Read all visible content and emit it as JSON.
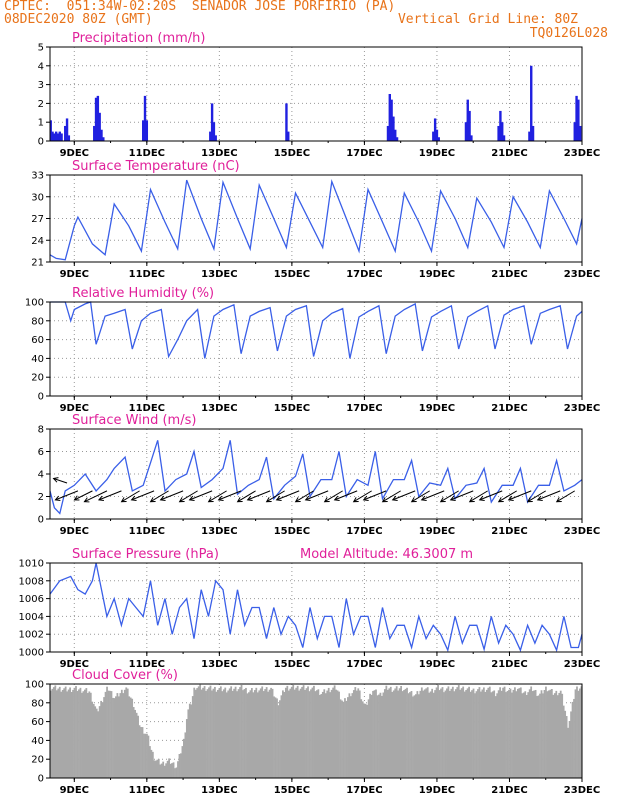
{
  "header": {
    "line1": "CPTEC:  051:34W-02:20S  SENADOR JOSE PORFIRIO (PA)",
    "date": "08DEC2020 80Z (GMT)",
    "grid_note": "Vertical Grid Line: 80Z",
    "code": "TQ0126L028"
  },
  "x_axis": {
    "ticks": [
      "9DEC",
      "11DEC",
      "13DEC",
      "15DEC",
      "17DEC",
      "19DEC",
      "21DEC",
      "23DEC"
    ],
    "tick_days": [
      9,
      11,
      13,
      15,
      17,
      19,
      21,
      23
    ],
    "start_day": 8.33,
    "end_day": 23.0
  },
  "chart_data": [
    {
      "type": "bar",
      "title": "Precipitation (mm/h)",
      "ylim": [
        0,
        5
      ],
      "yticks": [
        0,
        1,
        2,
        3,
        4,
        5
      ],
      "color": "#2020e0",
      "x": [
        8.35,
        8.4,
        8.45,
        8.5,
        8.55,
        8.6,
        8.65,
        8.75,
        8.8,
        8.85,
        9.55,
        9.6,
        9.65,
        9.7,
        9.75,
        9.8,
        10.9,
        10.95,
        11.0,
        12.75,
        12.8,
        12.85,
        12.9,
        14.85,
        14.9,
        17.65,
        17.7,
        17.75,
        17.8,
        17.85,
        17.9,
        18.9,
        18.95,
        19.0,
        19.05,
        19.8,
        19.85,
        19.9,
        19.95,
        20.7,
        20.75,
        20.8,
        20.85,
        21.55,
        21.6,
        21.65,
        22.8,
        22.85,
        22.9,
        22.95
      ],
      "values": [
        1.1,
        0.5,
        0.4,
        0.5,
        0.4,
        0.5,
        0.4,
        0.8,
        1.2,
        0.3,
        0.8,
        2.3,
        2.4,
        1.5,
        0.6,
        0.2,
        1.1,
        2.4,
        1.1,
        0.5,
        2.0,
        1.0,
        0.3,
        2.0,
        0.5,
        0.8,
        2.5,
        2.2,
        1.3,
        0.6,
        0.2,
        0.5,
        1.2,
        0.6,
        0.2,
        1.0,
        2.2,
        1.6,
        0.3,
        0.8,
        1.6,
        1.0,
        0.3,
        0.5,
        4.0,
        0.8,
        1.0,
        2.4,
        2.2,
        0.8
      ],
      "grid": true
    },
    {
      "type": "line",
      "title": "Surface Temperature (nC)",
      "ylim": [
        21,
        33
      ],
      "yticks": [
        21,
        24,
        27,
        30,
        33
      ],
      "color": "#3a5fe8",
      "x": [
        8.33,
        8.5,
        8.75,
        9.0,
        9.1,
        9.5,
        9.85,
        10.1,
        10.5,
        10.85,
        11.1,
        11.5,
        11.85,
        12.1,
        12.5,
        12.85,
        13.1,
        13.5,
        13.85,
        14.1,
        14.5,
        14.85,
        15.1,
        15.5,
        15.85,
        16.1,
        16.5,
        16.85,
        17.1,
        17.5,
        17.85,
        18.1,
        18.5,
        18.85,
        19.1,
        19.5,
        19.85,
        20.1,
        20.5,
        20.85,
        21.1,
        21.5,
        21.85,
        22.1,
        22.5,
        22.85,
        23.0
      ],
      "values": [
        22.0,
        21.5,
        21.3,
        26.0,
        27.2,
        23.5,
        22.0,
        29.0,
        26.0,
        22.5,
        31.0,
        26.5,
        22.8,
        32.3,
        27.0,
        22.8,
        32.0,
        27.0,
        22.8,
        31.6,
        27.0,
        23.0,
        30.5,
        26.5,
        23.0,
        32.1,
        27.0,
        22.5,
        31.0,
        26.5,
        22.5,
        30.5,
        26.5,
        22.5,
        30.8,
        27.0,
        23.0,
        29.8,
        26.5,
        23.0,
        30.0,
        26.5,
        23.0,
        30.8,
        27.0,
        23.5,
        27.0
      ],
      "grid": true
    },
    {
      "type": "line",
      "title": "Relative Humidity (%)",
      "ylim": [
        0,
        100
      ],
      "yticks": [
        0,
        20,
        40,
        60,
        80,
        100
      ],
      "color": "#3a5fe8",
      "x": [
        8.33,
        8.6,
        8.75,
        8.9,
        9.0,
        9.3,
        9.45,
        9.6,
        9.85,
        10.1,
        10.4,
        10.6,
        10.85,
        11.1,
        11.4,
        11.6,
        11.85,
        12.1,
        12.4,
        12.6,
        12.85,
        13.1,
        13.4,
        13.6,
        13.85,
        14.1,
        14.4,
        14.6,
        14.85,
        15.1,
        15.4,
        15.6,
        15.85,
        16.1,
        16.4,
        16.6,
        16.85,
        17.1,
        17.4,
        17.6,
        17.85,
        18.1,
        18.4,
        18.6,
        18.85,
        19.1,
        19.4,
        19.6,
        19.85,
        20.1,
        20.4,
        20.6,
        20.85,
        21.1,
        21.4,
        21.6,
        21.85,
        22.1,
        22.4,
        22.6,
        22.85,
        23.0
      ],
      "values": [
        100,
        100,
        100,
        80,
        92,
        98,
        100,
        55,
        85,
        88,
        92,
        50,
        80,
        88,
        92,
        42,
        60,
        80,
        92,
        40,
        85,
        92,
        97,
        45,
        85,
        90,
        94,
        48,
        85,
        92,
        96,
        42,
        80,
        88,
        93,
        40,
        84,
        90,
        96,
        45,
        85,
        92,
        98,
        48,
        84,
        90,
        96,
        50,
        84,
        90,
        96,
        50,
        86,
        92,
        96,
        55,
        88,
        92,
        96,
        50,
        85,
        90
      ],
      "grid": true
    },
    {
      "type": "line",
      "title": "Surface Wind (m/s)",
      "ylim": [
        0,
        8
      ],
      "yticks": [
        0,
        2,
        4,
        6,
        8
      ],
      "color": "#3a5fe8",
      "x": [
        8.33,
        8.45,
        8.6,
        8.75,
        9.0,
        9.3,
        9.6,
        9.9,
        10.1,
        10.4,
        10.6,
        10.9,
        11.1,
        11.3,
        11.5,
        11.8,
        12.1,
        12.3,
        12.5,
        12.8,
        13.1,
        13.3,
        13.5,
        13.8,
        14.1,
        14.3,
        14.5,
        14.8,
        15.1,
        15.3,
        15.5,
        15.8,
        16.1,
        16.3,
        16.5,
        16.8,
        17.1,
        17.3,
        17.5,
        17.8,
        18.1,
        18.3,
        18.5,
        18.8,
        19.1,
        19.3,
        19.5,
        19.8,
        20.1,
        20.3,
        20.5,
        20.8,
        21.1,
        21.3,
        21.5,
        21.8,
        22.1,
        22.3,
        22.5,
        22.8,
        23.0
      ],
      "values": [
        2.5,
        1.0,
        0.5,
        2.5,
        3.0,
        4.0,
        2.5,
        3.5,
        4.5,
        5.5,
        2.5,
        3.0,
        5.0,
        7.0,
        2.5,
        3.5,
        4.0,
        6.0,
        2.8,
        3.5,
        4.5,
        7.0,
        2.2,
        3.0,
        3.5,
        5.5,
        1.8,
        3.0,
        3.8,
        5.8,
        2.0,
        3.5,
        3.5,
        6.0,
        2.0,
        3.5,
        3.0,
        6.0,
        1.8,
        3.5,
        3.5,
        5.2,
        2.0,
        3.2,
        3.0,
        4.5,
        1.8,
        3.0,
        3.2,
        4.5,
        1.5,
        3.0,
        3.0,
        4.5,
        1.5,
        3.0,
        3.0,
        5.2,
        2.5,
        3.0,
        3.5
      ],
      "arrows": {
        "x": [
          8.8,
          9.1,
          9.5,
          9.9,
          10.3,
          10.8,
          11.2,
          11.6,
          12.0,
          12.4,
          12.8,
          13.2,
          13.6,
          14.0,
          14.4,
          14.8,
          15.2,
          15.6,
          16.0,
          16.4,
          16.8,
          17.2,
          17.6,
          18.0,
          18.4,
          18.8,
          19.2,
          19.6,
          20.0,
          20.4,
          20.8,
          21.2,
          21.6,
          22.0,
          22.4,
          22.8
        ],
        "y": [
          3.2,
          2.5,
          2.5,
          2.5,
          2.5,
          2.5,
          2.5,
          2.5,
          2.5,
          2.5,
          2.5,
          2.5,
          2.5,
          2.5,
          2.5,
          2.5,
          2.5,
          2.5,
          2.5,
          2.5,
          2.5,
          2.5,
          2.5,
          2.5,
          2.5,
          2.5,
          2.5,
          2.5,
          2.5,
          2.5,
          2.5,
          2.5,
          2.5,
          2.5,
          2.5,
          2.5
        ],
        "u": [
          -1.5,
          -2.5,
          -2.0,
          -2.5,
          -2.5,
          -2.0,
          -2.5,
          -2.0,
          -2.5,
          -2.0,
          -2.5,
          -2.0,
          -2.5,
          -2.0,
          -2.5,
          -2.0,
          -2.5,
          -2.0,
          -2.5,
          -2.0,
          -2.5,
          -2.0,
          -2.5,
          -2.0,
          -2.5,
          -2.0,
          -2.5,
          -2.0,
          -2.5,
          -2.0,
          -2.5,
          -2.0,
          -2.5,
          -2.0,
          -2.5,
          -2.0
        ],
        "v": [
          0.5,
          -1.0,
          -1.0,
          -1.2,
          -1.0,
          -1.2,
          -1.0,
          -1.2,
          -1.0,
          -1.2,
          -1.0,
          -1.2,
          -1.0,
          -1.2,
          -1.0,
          -1.2,
          -1.0,
          -1.2,
          -1.0,
          -1.2,
          -1.0,
          -1.2,
          -1.0,
          -1.2,
          -1.0,
          -1.2,
          -1.0,
          -1.2,
          -1.0,
          -1.2,
          -1.0,
          -1.2,
          -1.0,
          -1.2,
          -1.0,
          -1.2
        ]
      },
      "grid": true
    },
    {
      "type": "line",
      "title": "Surface Pressure (hPa)",
      "subtitle": "Model Altitude: 46.3007 m",
      "ylim": [
        1000,
        1010
      ],
      "yticks": [
        1000,
        1002,
        1004,
        1006,
        1008,
        1010
      ],
      "color": "#3a5fe8",
      "x": [
        8.33,
        8.6,
        8.9,
        9.1,
        9.3,
        9.5,
        9.6,
        9.7,
        9.9,
        10.1,
        10.3,
        10.5,
        10.7,
        10.9,
        11.1,
        11.3,
        11.5,
        11.7,
        11.9,
        12.1,
        12.3,
        12.5,
        12.7,
        12.9,
        13.1,
        13.3,
        13.5,
        13.7,
        13.9,
        14.1,
        14.3,
        14.5,
        14.7,
        14.9,
        15.1,
        15.3,
        15.5,
        15.7,
        15.9,
        16.1,
        16.3,
        16.5,
        16.7,
        16.9,
        17.1,
        17.3,
        17.5,
        17.7,
        17.9,
        18.1,
        18.3,
        18.5,
        18.7,
        18.9,
        19.1,
        19.3,
        19.5,
        19.7,
        19.9,
        20.1,
        20.3,
        20.5,
        20.7,
        20.9,
        21.1,
        21.3,
        21.5,
        21.7,
        21.9,
        22.1,
        22.3,
        22.5,
        22.7,
        22.9,
        23.0
      ],
      "values": [
        1006.5,
        1008,
        1008.5,
        1007,
        1006.5,
        1008,
        1010,
        1008,
        1004,
        1006,
        1003,
        1006,
        1005,
        1004,
        1008,
        1003,
        1006,
        1002,
        1005,
        1006,
        1001.5,
        1007,
        1004,
        1008,
        1007,
        1002,
        1007,
        1003,
        1005,
        1005,
        1001.5,
        1005,
        1002,
        1004,
        1003,
        1000.5,
        1005,
        1001.5,
        1004,
        1004,
        1000.5,
        1006,
        1002,
        1004,
        1004,
        1000.5,
        1005,
        1001.5,
        1003,
        1003,
        1000.5,
        1004,
        1001.5,
        1003,
        1002,
        1000.2,
        1004,
        1001,
        1003,
        1003,
        1000.3,
        1004,
        1001,
        1003,
        1002,
        1000.2,
        1003,
        1001,
        1003,
        1002,
        1000.2,
        1004,
        1000.5,
        1000.5,
        1002
      ],
      "grid": true
    },
    {
      "type": "area",
      "title": "Cloud Cover (%)",
      "ylim": [
        0,
        100
      ],
      "yticks": [
        0,
        20,
        40,
        60,
        80,
        100
      ],
      "color": "#a8a8a8",
      "x": [
        8.33,
        8.8,
        9.0,
        9.4,
        9.6,
        9.9,
        10.1,
        10.4,
        10.6,
        10.8,
        11.0,
        11.1,
        11.2,
        11.4,
        11.6,
        11.8,
        12.0,
        12.1,
        12.2,
        12.3,
        12.5,
        12.8,
        13.2,
        13.6,
        13.8,
        14.0,
        14.4,
        14.6,
        14.8,
        15.2,
        15.6,
        15.8,
        16.0,
        16.2,
        16.4,
        16.6,
        16.8,
        17.0,
        17.2,
        17.4,
        17.6,
        17.8,
        18.0,
        18.4,
        18.6,
        18.8,
        19.0,
        19.2,
        19.6,
        20.0,
        20.4,
        20.6,
        20.8,
        21.0,
        21.2,
        21.4,
        21.6,
        21.8,
        22.0,
        22.2,
        22.4,
        22.6,
        22.8,
        23.0
      ],
      "values": [
        96,
        94,
        95,
        92,
        70,
        96,
        85,
        96,
        80,
        55,
        45,
        30,
        20,
        15,
        18,
        12,
        40,
        70,
        80,
        97,
        96,
        95,
        94,
        96,
        92,
        94,
        95,
        80,
        96,
        96,
        95,
        90,
        94,
        96,
        80,
        90,
        96,
        75,
        94,
        88,
        96,
        94,
        96,
        88,
        96,
        92,
        96,
        94,
        96,
        93,
        95,
        90,
        96,
        92,
        96,
        90,
        95,
        88,
        96,
        90,
        92,
        55,
        95,
        97
      ],
      "grid": true
    }
  ]
}
